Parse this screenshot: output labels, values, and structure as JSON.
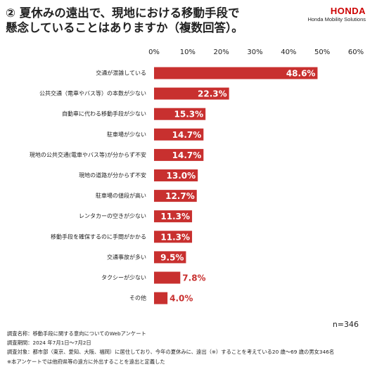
{
  "logo": {
    "brand": "HONDA",
    "subtitle": "Honda Mobility Solutions"
  },
  "notes": [
    "調査名称：移動手段に関する意向についてのWebアンケート",
    "調査期間：2024 年7月1日〜7月2日",
    "調査対象：都市部（東京、愛知、大阪、福岡）に居住しており、今年の夏休みに、遠出（※）することを考えている20 歳〜69 歳の男女346名",
    "※本アンケートでは他府県等の遠方に外出することを遠出と定義した"
  ],
  "chart_data": {
    "type": "bar",
    "orientation": "horizontal",
    "title": "② 夏休みの遠出で、現地における移動手段で\n懸念していることはありますか（複数回答）。",
    "note": "n=346",
    "categories": [
      "交通が混雑している",
      "公共交通（電車やバス等）の本数が少ない",
      "自動車に代わる移動手段が少ない",
      "駐車場が少ない",
      "現地の公共交通(電車やバス等)が分からず不安",
      "現地の道路が分からず不安",
      "駐車場の値段が高い",
      "レンタカーの空きが少ない",
      "移動手段を確保するのに手間がかかる",
      "交通事故が多い",
      "タクシーが少ない",
      "その他"
    ],
    "values": [
      48.6,
      22.3,
      15.3,
      14.7,
      14.7,
      13.0,
      12.7,
      11.3,
      11.3,
      9.5,
      7.8,
      4.0
    ],
    "value_labels": [
      "48.6%",
      "22.3%",
      "15.3%",
      "14.7%",
      "14.7%",
      "13.0%",
      "12.7%",
      "11.3%",
      "11.3%",
      "9.5%",
      "7.8%",
      "4.0%"
    ],
    "color": "#c8302f",
    "xlim": [
      0,
      60
    ],
    "xticks": [
      {
        "value": 0,
        "label": "0%"
      },
      {
        "value": 10,
        "label": "10%"
      },
      {
        "value": 20,
        "label": "20%"
      },
      {
        "value": 30,
        "label": "30%"
      },
      {
        "value": 40,
        "label": "40%"
      },
      {
        "value": 50,
        "label": "50%"
      },
      {
        "value": 60,
        "label": "60%"
      }
    ],
    "grid": false
  }
}
